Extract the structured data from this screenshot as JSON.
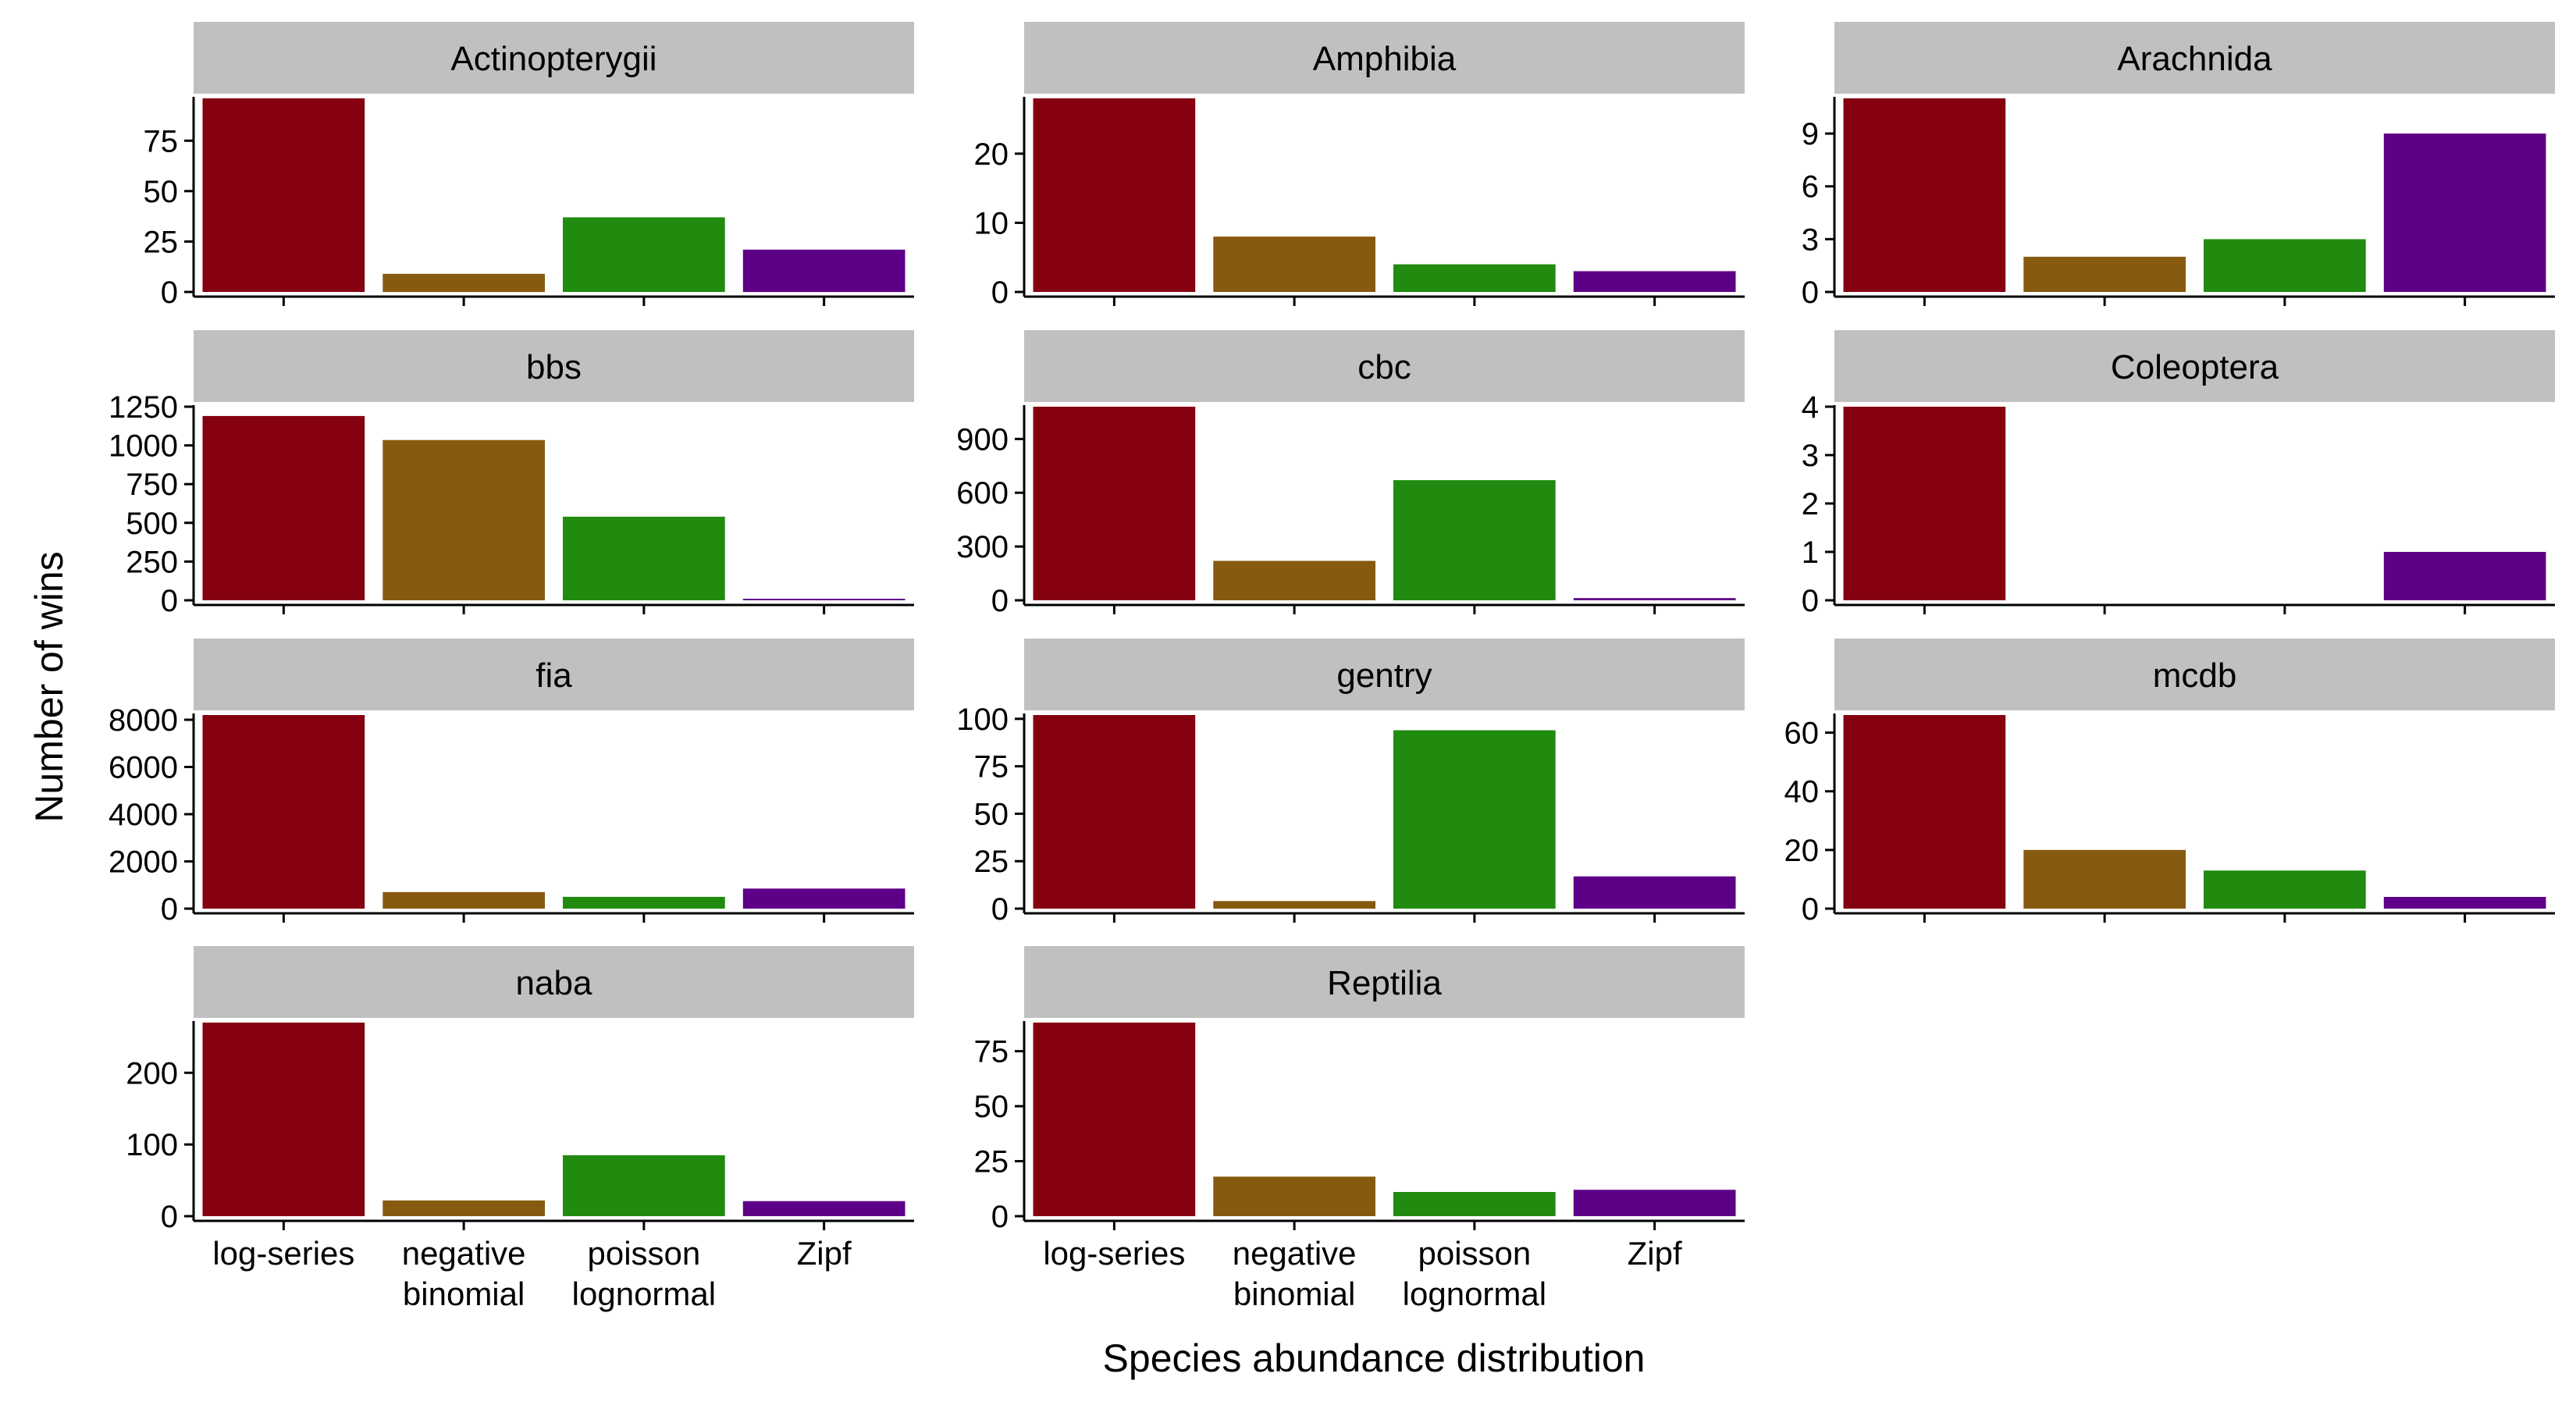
{
  "chart_data": {
    "type": "bar",
    "faceted": true,
    "xlabel": "Species abundance distribution",
    "ylabel": "Number of wins",
    "categories": [
      "log-series",
      "negative binomial",
      "poisson lognormal",
      "Zipf"
    ],
    "category_labels": [
      [
        "log-series"
      ],
      [
        "negative",
        "binomial"
      ],
      [
        "poisson",
        "lognormal"
      ],
      [
        "Zipf"
      ]
    ],
    "colors": [
      "#850010",
      "#865a0f",
      "#208b0f",
      "#5e0087"
    ],
    "strip_color": "#c0c0c0",
    "grid": false,
    "legend": "none",
    "panels": [
      {
        "title": "Actinopterygii",
        "values": [
          96,
          9,
          37,
          21
        ],
        "ylim": [
          0,
          96
        ],
        "yticks": [
          0,
          25,
          50,
          75
        ]
      },
      {
        "title": "Amphibia",
        "values": [
          28,
          8,
          4,
          3
        ],
        "ylim": [
          0,
          28
        ],
        "yticks": [
          0,
          10,
          20
        ]
      },
      {
        "title": "Arachnida",
        "values": [
          11,
          2,
          3,
          9
        ],
        "ylim": [
          0,
          11
        ],
        "yticks": [
          0,
          3,
          6,
          9
        ]
      },
      {
        "title": "bbs",
        "values": [
          1190,
          1035,
          540,
          10
        ],
        "ylim": [
          0,
          1250
        ],
        "yticks": [
          0,
          250,
          500,
          750,
          1000,
          1250
        ]
      },
      {
        "title": "cbc",
        "values": [
          1080,
          220,
          670,
          12
        ],
        "ylim": [
          0,
          1080
        ],
        "yticks": [
          0,
          300,
          600,
          900
        ]
      },
      {
        "title": "Coleoptera",
        "values": [
          4,
          0,
          0,
          1
        ],
        "ylim": [
          0,
          4
        ],
        "yticks": [
          0,
          1,
          2,
          3,
          4
        ]
      },
      {
        "title": "fia",
        "values": [
          8200,
          700,
          500,
          850
        ],
        "ylim": [
          0,
          8200
        ],
        "yticks": [
          0,
          2000,
          4000,
          6000,
          8000
        ]
      },
      {
        "title": "gentry",
        "values": [
          102,
          4,
          94,
          17
        ],
        "ylim": [
          0,
          102
        ],
        "yticks": [
          0,
          25,
          50,
          75,
          100
        ]
      },
      {
        "title": "mcdb",
        "values": [
          66,
          20,
          13,
          4
        ],
        "ylim": [
          0,
          66
        ],
        "yticks": [
          0,
          20,
          40,
          60
        ]
      },
      {
        "title": "naba",
        "values": [
          270,
          22,
          85,
          21
        ],
        "ylim": [
          0,
          270
        ],
        "yticks": [
          0,
          100,
          200
        ]
      },
      {
        "title": "Reptilia",
        "values": [
          88,
          18,
          11,
          12
        ],
        "ylim": [
          0,
          88
        ],
        "yticks": [
          0,
          25,
          50,
          75
        ]
      }
    ]
  }
}
